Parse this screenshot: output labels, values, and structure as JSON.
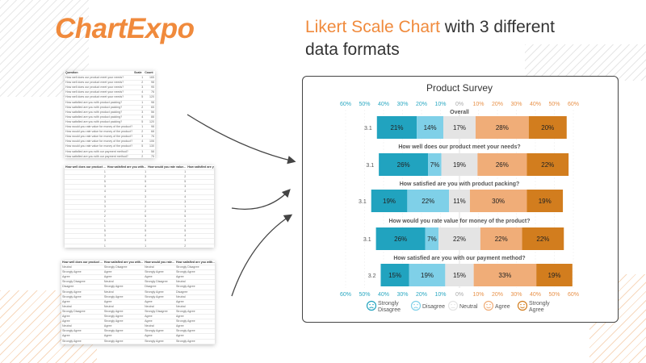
{
  "logo": "ChartExpo",
  "headline": {
    "accent": "Likert Scale Chart",
    "rest": " with 3 different data formats"
  },
  "sheet1": {
    "headers": [
      "Question",
      "Scale",
      "Count"
    ],
    "rows": [
      [
        "How well does our product meet your needs?",
        "1",
        "165"
      ],
      [
        "How well does our product meet your needs?",
        "2",
        "98"
      ],
      [
        "How well does our product meet your needs?",
        "3",
        "95"
      ],
      [
        "How well does our product meet your needs?",
        "4",
        "76"
      ],
      [
        "How well does our product meet your needs?",
        "5",
        "120"
      ],
      [
        "How satisfied are you with product packing?",
        "1",
        "98"
      ],
      [
        "How satisfied are you with product packing?",
        "2",
        "65"
      ],
      [
        "How satisfied are you with product packing?",
        "3",
        "56"
      ],
      [
        "How satisfied are you with product packing?",
        "4",
        "88"
      ],
      [
        "How satisfied are you with product packing?",
        "5",
        "120"
      ],
      [
        "How would you rate value for money of the product?",
        "1",
        "98"
      ],
      [
        "How would you rate value for money of the product?",
        "2",
        "68"
      ],
      [
        "How would you rate value for money of the product?",
        "3",
        "76"
      ],
      [
        "How would you rate value for money of the product?",
        "4",
        "106"
      ],
      [
        "How would you rate value for money of the product?",
        "5",
        "130"
      ],
      [
        "How satisfied are you with our payment method?",
        "1",
        "58"
      ],
      [
        "How satisfied are you with our payment method?",
        "2",
        "75"
      ],
      [
        "How satisfied are you with our payment method?",
        "3",
        "69"
      ]
    ]
  },
  "sheet2": {
    "headers": [
      "How well does our product ...",
      "How satisfied are you with...",
      "How would you rate value...",
      "How satisfied are you with..."
    ],
    "rows": [
      [
        "1",
        "1",
        "1",
        "3"
      ],
      [
        "2",
        "3",
        "2",
        "3"
      ],
      [
        "5",
        "5",
        "5",
        "5"
      ],
      [
        "3",
        "4",
        "3",
        "3"
      ],
      [
        "4",
        "3",
        "4",
        "2"
      ],
      [
        "4",
        "3",
        "4",
        "3"
      ],
      [
        "3",
        "1",
        "3",
        "5"
      ],
      [
        "3",
        "2",
        "1",
        "2"
      ],
      [
        "2",
        "2",
        "3",
        "4"
      ],
      [
        "2",
        "5",
        "5",
        "4"
      ],
      [
        "1",
        "1",
        "1",
        "5"
      ],
      [
        "1",
        "3",
        "4",
        "3"
      ],
      [
        "5",
        "5",
        "5",
        "1"
      ],
      [
        "3",
        "4",
        "4",
        "4"
      ],
      [
        "3",
        "3",
        "3",
        "3"
      ],
      [
        "1",
        "1",
        "2",
        "5"
      ],
      [
        "4",
        "4",
        "3",
        "4"
      ],
      [
        "3",
        "5",
        "5",
        "5"
      ],
      [
        "2",
        "3",
        "2",
        "2"
      ],
      [
        "3",
        "3",
        "3",
        "3"
      ]
    ]
  },
  "sheet3": {
    "headers": [
      "How well does our product ...",
      "How satisfied are you with...",
      "How would you rate...",
      "How satisfied are you with..."
    ],
    "rows": [
      [
        "Neutral",
        "Strongly Disagree",
        "Neutral",
        "Strongly Disagree"
      ],
      [
        "Strongly Agree",
        "Agree",
        "Strongly Agree",
        "Strongly Agree"
      ],
      [
        "Agree",
        "Agree",
        "Agree",
        "Agree"
      ],
      [
        "Strongly Disagree",
        "Neutral",
        "Strongly Disagree",
        "Neutral"
      ],
      [
        "Disagree",
        "Strongly Agree",
        "Disagree",
        "Strongly Agree"
      ],
      [
        "Strongly Agree",
        "Neutral",
        "Strongly Agree",
        "Disagree"
      ],
      [
        "Strongly Agree",
        "Strongly Agree",
        "Strongly Agree",
        "Neutral"
      ],
      [
        "Agree",
        "Agree",
        "Agree",
        "Agree"
      ],
      [
        "Neutral",
        "Neutral",
        "Neutral",
        "Neutral"
      ],
      [
        "Strongly Disagree",
        "Strongly Agree",
        "Strongly Disagree",
        "Strongly Agree"
      ],
      [
        "Agree",
        "Strongly Agree",
        "Agree",
        "Agree"
      ],
      [
        "Agree",
        "Strongly Agree",
        "Agree",
        "Strongly Agree"
      ],
      [
        "Neutral",
        "Agree",
        "Neutral",
        "Agree"
      ],
      [
        "Strongly Agree",
        "Strongly Agree",
        "Strongly Agree",
        "Strongly Agree"
      ],
      [
        "Agree",
        "Agree",
        "Agree",
        "Agree"
      ],
      [
        "Strongly Agree",
        "Strongly Agree",
        "Strongly Agree",
        "Strongly Agree"
      ],
      [
        "Strongly Agree",
        "Strongly Agree",
        "Strongly Agree",
        "Agree"
      ]
    ]
  },
  "chart_data": {
    "type": "bar",
    "stacking": "diverging",
    "title": "Product Survey",
    "axis_ticks": [
      "60%",
      "50%",
      "40%",
      "30%",
      "20%",
      "10%",
      "0%",
      "10%",
      "20%",
      "30%",
      "40%",
      "50%",
      "60%"
    ],
    "xlim": [
      -60,
      60
    ],
    "tick_colors": {
      "negative": "#2aa8c2",
      "zero": "#aaaaaa",
      "positive": "#e8924a"
    },
    "neutral_centered": true,
    "series": [
      {
        "name": "Strongly Disagree",
        "color": "#21a3bf",
        "icon": "sad-face-icon"
      },
      {
        "name": "Disagree",
        "color": "#7fd0e8",
        "icon": "frown-face-icon"
      },
      {
        "name": "Neutral",
        "color": "#e4e4e4",
        "icon": "neutral-face-icon"
      },
      {
        "name": "Agree",
        "color": "#f0ad78",
        "icon": "smile-face-icon"
      },
      {
        "name": "Strongly Agree",
        "color": "#d27d1e",
        "icon": "grin-face-icon"
      }
    ],
    "rows": [
      {
        "label": "Overall",
        "score": "3.1",
        "values": [
          21,
          14,
          17,
          28,
          20
        ]
      },
      {
        "label": "How well does our product meet your needs?",
        "score": "3.1",
        "values": [
          26,
          7,
          19,
          26,
          22
        ]
      },
      {
        "label": "How satisfied are you with product packing?",
        "score": "3.1",
        "values": [
          19,
          22,
          11,
          30,
          19
        ]
      },
      {
        "label": "How would you rate value for money of the product?",
        "score": "3.1",
        "values": [
          26,
          7,
          22,
          22,
          22
        ]
      },
      {
        "label": "How satisfied are you with our payment method?",
        "score": "3.2",
        "values": [
          15,
          19,
          15,
          33,
          19
        ]
      }
    ],
    "legend_position": "bottom"
  }
}
